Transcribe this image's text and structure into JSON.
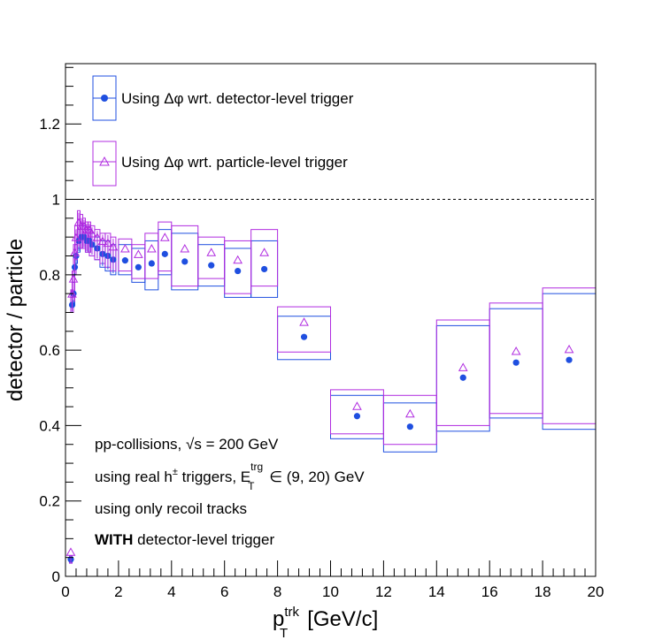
{
  "chart_data": {
    "type": "scatter",
    "xlabel_main": "p",
    "xlabel_sup": "trk",
    "xlabel_sub": "T",
    "xlabel_unit": "[GeV/c]",
    "ylabel": "detector / particle",
    "xlim": [
      0,
      20
    ],
    "ylim": [
      0,
      1.36
    ],
    "x_ticks": [
      "0",
      "2",
      "4",
      "6",
      "8",
      "10",
      "12",
      "14",
      "16",
      "18",
      "20"
    ],
    "y_ticks": [
      "0",
      "0.2",
      "0.4",
      "0.6",
      "0.8",
      "1",
      "1.2"
    ],
    "reference_line": 1.0,
    "legend": {
      "placement": "top-left",
      "entries": [
        {
          "label_pre": "Using ",
          "label_symbol": "Δφ",
          "label_post": " wrt. detector-level trigger",
          "color": "#1f4fe0",
          "marker": "filled-circle"
        },
        {
          "label_pre": "Using ",
          "label_symbol": "Δφ",
          "label_post": " wrt. particle-level trigger",
          "color": "#b02ce0",
          "marker": "open-triangle"
        }
      ]
    },
    "annotations": {
      "line1_pre": "pp-collisions, ",
      "line1_sqrt": "√s",
      "line1_post": " = 200 GeV",
      "line2_pre": "using real h",
      "line2_sup_pm": "±",
      "line2_mid": " triggers, E",
      "line2_sup": "trg",
      "line2_sub": "T",
      "line2_post": " ∈ (9, 20) GeV",
      "line3": "using only recoil tracks",
      "line4_bold": "WITH",
      "line4_rest": " detector-level trigger"
    },
    "series": [
      {
        "name": "Using Δφ wrt. detector-level trigger",
        "color": "#1f4fe0",
        "points": [
          {
            "x": 0.2,
            "y": 0.045,
            "hw": 0.05,
            "lo": 0.035,
            "hi": 0.05
          },
          {
            "x": 0.25,
            "y": 0.72,
            "hw": 0.05,
            "lo": 0.7,
            "hi": 0.74
          },
          {
            "x": 0.3,
            "y": 0.75,
            "hw": 0.05,
            "lo": 0.72,
            "hi": 0.78
          },
          {
            "x": 0.35,
            "y": 0.82,
            "hw": 0.05,
            "lo": 0.8,
            "hi": 0.85
          },
          {
            "x": 0.4,
            "y": 0.85,
            "hw": 0.05,
            "lo": 0.83,
            "hi": 0.88
          },
          {
            "x": 0.5,
            "y": 0.89,
            "hw": 0.05,
            "lo": 0.86,
            "hi": 0.92
          },
          {
            "x": 0.6,
            "y": 0.9,
            "hw": 0.05,
            "lo": 0.87,
            "hi": 0.93
          },
          {
            "x": 0.7,
            "y": 0.9,
            "hw": 0.05,
            "lo": 0.87,
            "hi": 0.93
          },
          {
            "x": 0.8,
            "y": 0.89,
            "hw": 0.05,
            "lo": 0.86,
            "hi": 0.92
          },
          {
            "x": 0.9,
            "y": 0.89,
            "hw": 0.05,
            "lo": 0.86,
            "hi": 0.92
          },
          {
            "x": 1.0,
            "y": 0.88,
            "hw": 0.1,
            "lo": 0.85,
            "hi": 0.91
          },
          {
            "x": 1.2,
            "y": 0.87,
            "hw": 0.1,
            "lo": 0.84,
            "hi": 0.9
          },
          {
            "x": 1.4,
            "y": 0.855,
            "hw": 0.1,
            "lo": 0.82,
            "hi": 0.89
          },
          {
            "x": 1.6,
            "y": 0.85,
            "hw": 0.1,
            "lo": 0.81,
            "hi": 0.89
          },
          {
            "x": 1.8,
            "y": 0.84,
            "hw": 0.1,
            "lo": 0.8,
            "hi": 0.88
          },
          {
            "x": 2.25,
            "y": 0.838,
            "hw": 0.25,
            "lo": 0.8,
            "hi": 0.88
          },
          {
            "x": 2.75,
            "y": 0.82,
            "hw": 0.25,
            "lo": 0.78,
            "hi": 0.87
          },
          {
            "x": 3.25,
            "y": 0.83,
            "hw": 0.25,
            "lo": 0.76,
            "hi": 0.89
          },
          {
            "x": 3.75,
            "y": 0.855,
            "hw": 0.25,
            "lo": 0.8,
            "hi": 0.92
          },
          {
            "x": 4.5,
            "y": 0.835,
            "hw": 0.5,
            "lo": 0.76,
            "hi": 0.91
          },
          {
            "x": 5.5,
            "y": 0.825,
            "hw": 0.5,
            "lo": 0.77,
            "hi": 0.88
          },
          {
            "x": 6.5,
            "y": 0.81,
            "hw": 0.5,
            "lo": 0.74,
            "hi": 0.87
          },
          {
            "x": 7.5,
            "y": 0.815,
            "hw": 0.5,
            "lo": 0.74,
            "hi": 0.89
          },
          {
            "x": 9.0,
            "y": 0.635,
            "hw": 1.0,
            "lo": 0.575,
            "hi": 0.69
          },
          {
            "x": 11.0,
            "y": 0.425,
            "hw": 1.0,
            "lo": 0.365,
            "hi": 0.48
          },
          {
            "x": 13.0,
            "y": 0.397,
            "hw": 1.0,
            "lo": 0.33,
            "hi": 0.46
          },
          {
            "x": 15.0,
            "y": 0.527,
            "hw": 1.0,
            "lo": 0.385,
            "hi": 0.665
          },
          {
            "x": 17.0,
            "y": 0.567,
            "hw": 1.0,
            "lo": 0.42,
            "hi": 0.71
          },
          {
            "x": 19.0,
            "y": 0.574,
            "hw": 1.0,
            "lo": 0.39,
            "hi": 0.75
          }
        ]
      },
      {
        "name": "Using Δφ wrt. particle-level trigger",
        "color": "#b02ce0",
        "points": [
          {
            "x": 0.2,
            "y": 0.045,
            "hw": 0.05,
            "lo": 0.035,
            "hi": 0.055
          },
          {
            "x": 0.25,
            "y": 0.73,
            "hw": 0.05,
            "lo": 0.7,
            "hi": 0.76
          },
          {
            "x": 0.3,
            "y": 0.77,
            "hw": 0.05,
            "lo": 0.73,
            "hi": 0.81
          },
          {
            "x": 0.35,
            "y": 0.84,
            "hw": 0.05,
            "lo": 0.8,
            "hi": 0.88
          },
          {
            "x": 0.4,
            "y": 0.88,
            "hw": 0.05,
            "lo": 0.84,
            "hi": 0.93
          },
          {
            "x": 0.5,
            "y": 0.92,
            "hw": 0.05,
            "lo": 0.87,
            "hi": 0.97
          },
          {
            "x": 0.6,
            "y": 0.91,
            "hw": 0.05,
            "lo": 0.87,
            "hi": 0.96
          },
          {
            "x": 0.7,
            "y": 0.91,
            "hw": 0.05,
            "lo": 0.87,
            "hi": 0.95
          },
          {
            "x": 0.8,
            "y": 0.9,
            "hw": 0.05,
            "lo": 0.86,
            "hi": 0.94
          },
          {
            "x": 0.9,
            "y": 0.9,
            "hw": 0.05,
            "lo": 0.86,
            "hi": 0.94
          },
          {
            "x": 1.0,
            "y": 0.89,
            "hw": 0.1,
            "lo": 0.85,
            "hi": 0.93
          },
          {
            "x": 1.2,
            "y": 0.88,
            "hw": 0.1,
            "lo": 0.84,
            "hi": 0.92
          },
          {
            "x": 1.4,
            "y": 0.87,
            "hw": 0.1,
            "lo": 0.83,
            "hi": 0.91
          },
          {
            "x": 1.6,
            "y": 0.865,
            "hw": 0.1,
            "lo": 0.82,
            "hi": 0.91
          },
          {
            "x": 1.8,
            "y": 0.855,
            "hw": 0.1,
            "lo": 0.81,
            "hi": 0.9
          },
          {
            "x": 2.25,
            "y": 0.85,
            "hw": 0.25,
            "lo": 0.81,
            "hi": 0.895
          },
          {
            "x": 2.75,
            "y": 0.835,
            "hw": 0.25,
            "lo": 0.79,
            "hi": 0.88
          },
          {
            "x": 3.25,
            "y": 0.85,
            "hw": 0.25,
            "lo": 0.79,
            "hi": 0.91
          },
          {
            "x": 3.75,
            "y": 0.88,
            "hw": 0.25,
            "lo": 0.81,
            "hi": 0.94
          },
          {
            "x": 4.5,
            "y": 0.85,
            "hw": 0.5,
            "lo": 0.77,
            "hi": 0.93
          },
          {
            "x": 5.5,
            "y": 0.84,
            "hw": 0.5,
            "lo": 0.79,
            "hi": 0.9
          },
          {
            "x": 6.5,
            "y": 0.82,
            "hw": 0.5,
            "lo": 0.75,
            "hi": 0.89
          },
          {
            "x": 7.5,
            "y": 0.84,
            "hw": 0.5,
            "lo": 0.77,
            "hi": 0.92
          },
          {
            "x": 9.0,
            "y": 0.655,
            "hw": 1.0,
            "lo": 0.595,
            "hi": 0.715
          },
          {
            "x": 11.0,
            "y": 0.432,
            "hw": 1.0,
            "lo": 0.378,
            "hi": 0.495
          },
          {
            "x": 13.0,
            "y": 0.412,
            "hw": 1.0,
            "lo": 0.35,
            "hi": 0.48
          },
          {
            "x": 15.0,
            "y": 0.535,
            "hw": 1.0,
            "lo": 0.4,
            "hi": 0.68
          },
          {
            "x": 17.0,
            "y": 0.578,
            "hw": 1.0,
            "lo": 0.432,
            "hi": 0.725
          },
          {
            "x": 19.0,
            "y": 0.583,
            "hw": 1.0,
            "lo": 0.405,
            "hi": 0.765
          }
        ]
      }
    ]
  }
}
